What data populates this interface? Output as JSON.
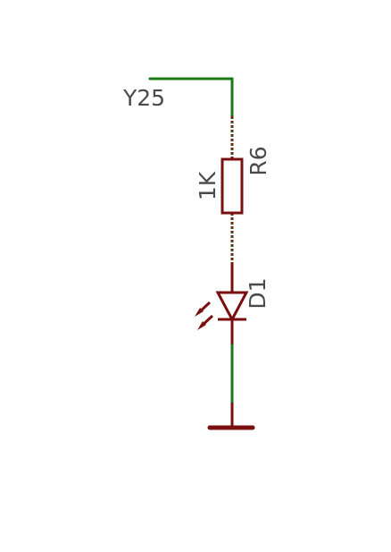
{
  "schematic": {
    "net_label": "Y25",
    "resistor": {
      "value": "1K",
      "designator": "R6"
    },
    "led": {
      "designator": "D1"
    },
    "colors": {
      "wire": "#1a7a1a",
      "component": "#7a0f0f",
      "text": "#4a4a4a",
      "background": "#ffffff"
    }
  }
}
